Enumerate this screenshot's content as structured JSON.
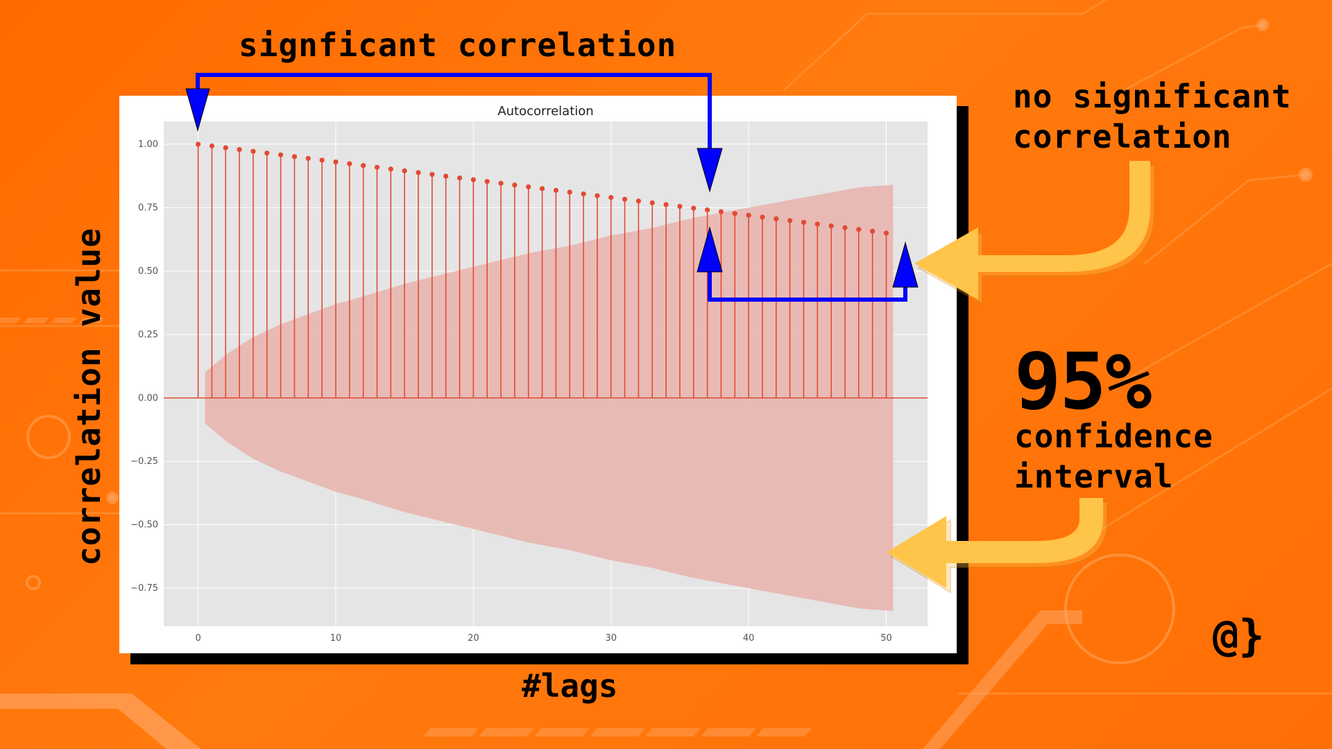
{
  "annotations": {
    "significant": "signficant correlation",
    "no_significant_line1": "no significant",
    "no_significant_line2": "correlation",
    "percent": "95%",
    "confidence_line1": "confidence",
    "confidence_line2": "interval",
    "xaxis_note": "#lags",
    "yaxis_note": "correlation value",
    "logo": "@}"
  },
  "colors": {
    "background": "#ff6f05",
    "stem": "#e24a33",
    "confidence_band": "#e9b3ad",
    "plot_bg": "#e5e5e5",
    "grid": "#ffffff",
    "bracket": "#0000ff",
    "arrow": "#ffc44a"
  },
  "icons": {
    "bracket_arrows": "arrow-down-icon",
    "curved_arrows": "curved-arrow-left-icon"
  },
  "chart_data": {
    "type": "stem",
    "title": "Autocorrelation",
    "xlabel": "",
    "ylabel": "",
    "xlim": [
      -2.5,
      53.0
    ],
    "ylim": [
      -0.9,
      1.09
    ],
    "xticks": [
      0,
      10,
      20,
      30,
      40,
      50
    ],
    "yticks": [
      1.0,
      0.75,
      0.5,
      0.25,
      0.0,
      -0.25,
      -0.5,
      -0.75
    ],
    "ytick_labels": [
      "1.00",
      "0.75",
      "0.50",
      "0.25",
      "0.00",
      "−0.25",
      "−0.50",
      "−0.75"
    ],
    "grid": true,
    "lags": [
      0,
      1,
      2,
      3,
      4,
      5,
      6,
      7,
      8,
      9,
      10,
      11,
      12,
      13,
      14,
      15,
      16,
      17,
      18,
      19,
      20,
      21,
      22,
      23,
      24,
      25,
      26,
      27,
      28,
      29,
      30,
      31,
      32,
      33,
      34,
      35,
      36,
      37,
      38,
      39,
      40,
      41,
      42,
      43,
      44,
      45,
      46,
      47,
      48,
      49,
      50
    ],
    "acf": [
      1.0,
      0.993,
      0.986,
      0.979,
      0.972,
      0.965,
      0.958,
      0.951,
      0.944,
      0.937,
      0.93,
      0.923,
      0.916,
      0.909,
      0.902,
      0.895,
      0.888,
      0.881,
      0.874,
      0.867,
      0.86,
      0.853,
      0.846,
      0.839,
      0.832,
      0.825,
      0.818,
      0.811,
      0.804,
      0.797,
      0.79,
      0.783,
      0.776,
      0.769,
      0.762,
      0.755,
      0.748,
      0.741,
      0.734,
      0.727,
      0.72,
      0.713,
      0.706,
      0.699,
      0.692,
      0.685,
      0.678,
      0.671,
      0.664,
      0.657,
      0.65
    ],
    "confidence_interval": {
      "level": 0.95,
      "band_x_start": 0.5,
      "band_x_end": 50.5,
      "x": [
        0.5,
        2,
        4,
        6,
        8,
        10,
        12,
        15,
        18,
        21,
        24,
        27,
        30,
        33,
        36,
        39,
        42,
        45,
        48,
        50.5
      ],
      "upper": [
        0.1,
        0.17,
        0.24,
        0.29,
        0.33,
        0.37,
        0.4,
        0.45,
        0.49,
        0.53,
        0.57,
        0.6,
        0.64,
        0.67,
        0.71,
        0.74,
        0.77,
        0.8,
        0.83,
        0.84
      ]
    }
  }
}
